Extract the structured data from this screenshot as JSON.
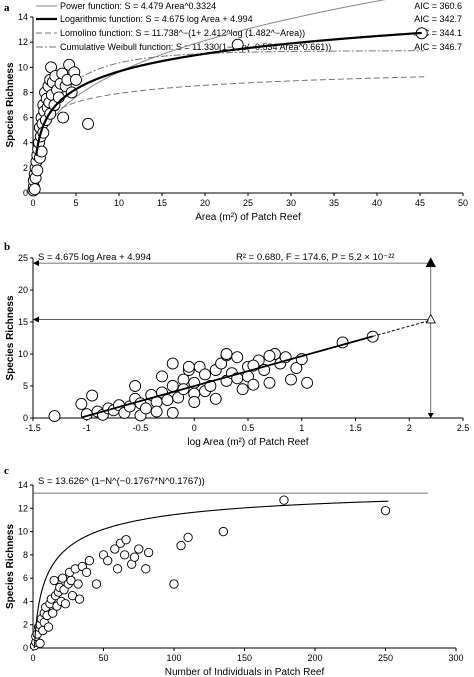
{
  "chart_data": [
    {
      "panel": "a",
      "type": "scatter",
      "xlabel": "Area (m²) of Patch Reef",
      "ylabel": "Species Richness",
      "xlim": [
        0,
        50
      ],
      "ylim": [
        0,
        14
      ],
      "xticks": [
        "0",
        "5",
        "10",
        "15",
        "20",
        "25",
        "30",
        "35",
        "40",
        "45",
        "50"
      ],
      "yticks": [
        "0",
        "2",
        "4",
        "6",
        "8",
        "10",
        "12",
        "14"
      ],
      "legend": [
        {
          "label": "Power function: S = 4.479 Area^0.3324",
          "aic": "AIC = 360.6",
          "color": "#888888",
          "width": 1,
          "dash": ""
        },
        {
          "label": "Logarithmic function: S = 4.675 log Area + 4.994",
          "aic": "AIC = 342.7",
          "color": "#000000",
          "width": 2.2,
          "dash": ""
        },
        {
          "label": "Lomolino function: S = 11.738^−(1+ 2.412^log (1.482^−Area))",
          "aic": "AIC = 344.1",
          "color": "#777777",
          "width": 1,
          "dash": "6,3"
        },
        {
          "label": "Cumulative Weibull function: S = 11.330(1−exp(−0.534 Area^0.661))",
          "aic": "AIC = 346.7",
          "color": "#777777",
          "width": 1,
          "dash": "7,2,2,2"
        }
      ],
      "points": [
        [
          0.05,
          0.2
        ],
        [
          0.1,
          0.5
        ],
        [
          0.1,
          1.0
        ],
        [
          0.2,
          0.3
        ],
        [
          0.2,
          1.5
        ],
        [
          0.3,
          2.0
        ],
        [
          0.3,
          1.2
        ],
        [
          0.4,
          2.5
        ],
        [
          0.5,
          3.0
        ],
        [
          0.5,
          1.8
        ],
        [
          0.6,
          3.5
        ],
        [
          0.7,
          4.0
        ],
        [
          0.8,
          2.8
        ],
        [
          0.8,
          5.2
        ],
        [
          0.9,
          4.5
        ],
        [
          1.0,
          6.0
        ],
        [
          1.0,
          3.3
        ],
        [
          1.1,
          5.5
        ],
        [
          1.2,
          7.0
        ],
        [
          1.2,
          4.8
        ],
        [
          1.3,
          6.5
        ],
        [
          1.4,
          8.0
        ],
        [
          1.5,
          5.8
        ],
        [
          1.6,
          7.5
        ],
        [
          1.7,
          6.8
        ],
        [
          1.8,
          8.5
        ],
        [
          1.9,
          7.2
        ],
        [
          2.0,
          6.3
        ],
        [
          2.0,
          9.0
        ],
        [
          2.1,
          10.0
        ],
        [
          2.2,
          7.8
        ],
        [
          2.3,
          8.8
        ],
        [
          2.5,
          7.0
        ],
        [
          2.6,
          9.3
        ],
        [
          2.8,
          8.2
        ],
        [
          3.0,
          7.6
        ],
        [
          3.2,
          8.7
        ],
        [
          3.4,
          9.5
        ],
        [
          3.5,
          6.0
        ],
        [
          3.8,
          8.5
        ],
        [
          4.0,
          9.0
        ],
        [
          4.2,
          10.2
        ],
        [
          4.5,
          8.0
        ],
        [
          4.8,
          9.6
        ],
        [
          5.0,
          9.0
        ],
        [
          6.4,
          5.5
        ],
        [
          23.8,
          11.8
        ],
        [
          45.2,
          12.7
        ]
      ],
      "curves": {
        "power": {
          "a": 4.479,
          "b": 0.3324
        },
        "logarithmic": {
          "a": 4.675,
          "b": 4.994
        },
        "lomolino": {
          "a": 11.738,
          "b": 2.412,
          "c": 1.482
        },
        "weibull": {
          "a": 11.33,
          "b": 0.534,
          "c": 0.661
        }
      }
    },
    {
      "panel": "b",
      "type": "scatter",
      "annotation": "S = 4.675 log Area + 4.994",
      "stats": "R² = 0.680, F = 174.6, P = 5.2 × 10⁻²²",
      "xlabel": "log Area (m²) of Patch Reef",
      "ylabel": "Species Richness",
      "xlim": [
        -1.5,
        2.5
      ],
      "ylim": [
        0,
        25
      ],
      "xticks": [
        "-1.5",
        "-1",
        "-0.5",
        "0",
        "0.5",
        "1",
        "1.5",
        "2",
        "2.5"
      ],
      "yticks": [
        "0",
        "5",
        "10",
        "15",
        "20",
        "25"
      ],
      "line": {
        "slope": 4.675,
        "intercept": 4.994,
        "x_start": -1.05,
        "x_solid_end": 1.66,
        "x_dash_end": 2.2
      },
      "ref_lines": [
        {
          "y": 24.2,
          "marker": "filled-triangle"
        },
        {
          "y": 15.4,
          "marker": "open-triangle"
        }
      ],
      "ref_x": 2.2,
      "points": [
        [
          -1.3,
          0.3
        ],
        [
          -1.05,
          2.2
        ],
        [
          -1.0,
          0.6
        ],
        [
          -0.95,
          3.5
        ],
        [
          -0.9,
          1.0
        ],
        [
          -0.85,
          0.5
        ],
        [
          -0.8,
          1.5
        ],
        [
          -0.75,
          1.2
        ],
        [
          -0.7,
          2.0
        ],
        [
          -0.65,
          0.8
        ],
        [
          -0.6,
          1.8
        ],
        [
          -0.55,
          3.0
        ],
        [
          -0.5,
          2.3
        ],
        [
          -0.5,
          0.4
        ],
        [
          -0.45,
          1.5
        ],
        [
          -0.4,
          3.6
        ],
        [
          -0.35,
          2.5
        ],
        [
          -0.35,
          1.0
        ],
        [
          -0.3,
          4.0
        ],
        [
          -0.3,
          6.5
        ],
        [
          -0.25,
          2.8
        ],
        [
          -0.2,
          5.0
        ],
        [
          -0.2,
          0.8
        ],
        [
          -0.15,
          3.2
        ],
        [
          -0.1,
          6.0
        ],
        [
          -0.1,
          4.5
        ],
        [
          -0.05,
          7.5
        ],
        [
          0.0,
          5.5
        ],
        [
          0.0,
          3.8
        ],
        [
          0.0,
          2.5
        ],
        [
          0.05,
          8.0
        ],
        [
          0.1,
          4.2
        ],
        [
          0.1,
          6.8
        ],
        [
          0.15,
          5.0
        ],
        [
          0.2,
          7.5
        ],
        [
          0.2,
          3.0
        ],
        [
          0.25,
          8.5
        ],
        [
          0.3,
          5.8
        ],
        [
          0.3,
          9.8
        ],
        [
          0.35,
          7.0
        ],
        [
          0.4,
          6.2
        ],
        [
          0.4,
          9.5
        ],
        [
          0.45,
          4.5
        ],
        [
          0.5,
          8.0
        ],
        [
          0.5,
          6.5
        ],
        [
          0.55,
          5.2
        ],
        [
          0.6,
          9.0
        ],
        [
          0.65,
          7.5
        ],
        [
          0.7,
          5.5
        ],
        [
          0.75,
          10.0
        ],
        [
          0.8,
          8.5
        ],
        [
          0.85,
          9.5
        ],
        [
          0.9,
          6.0
        ],
        [
          0.95,
          7.8
        ],
        [
          1.0,
          9.2
        ],
        [
          1.05,
          5.5
        ],
        [
          -0.55,
          5.0
        ],
        [
          -0.2,
          8.5
        ],
        [
          -0.05,
          8.0
        ],
        [
          0.3,
          10.0
        ],
        [
          0.55,
          8.2
        ],
        [
          0.7,
          9.7
        ],
        [
          1.38,
          11.8
        ],
        [
          1.66,
          12.7
        ]
      ]
    },
    {
      "panel": "c",
      "type": "scatter",
      "annotation": "S = 13.626^ (1−N^(−0.1767*N^0.1767))",
      "xlabel": "Number of Individuals in Patch Reef",
      "ylabel": "Species Richness",
      "xlim": [
        0,
        300
      ],
      "ylim": [
        0,
        14
      ],
      "xticks": [
        "0",
        "50",
        "100",
        "150",
        "200",
        "250",
        "300"
      ],
      "yticks": [
        "0",
        "2",
        "4",
        "6",
        "8",
        "10",
        "12",
        "14"
      ],
      "asymptote": 13.3,
      "curve": {
        "a": 13.626,
        "b": 0.1767
      },
      "points": [
        [
          1,
          0.2
        ],
        [
          2,
          0.5
        ],
        [
          2,
          1.0
        ],
        [
          3,
          1.2
        ],
        [
          4,
          1.8
        ],
        [
          5,
          0.4
        ],
        [
          5,
          2.0
        ],
        [
          6,
          2.5
        ],
        [
          7,
          1.5
        ],
        [
          8,
          3.0
        ],
        [
          8,
          2.2
        ],
        [
          9,
          3.5
        ],
        [
          10,
          2.8
        ],
        [
          11,
          1.8
        ],
        [
          12,
          3.8
        ],
        [
          13,
          4.2
        ],
        [
          14,
          3.0
        ],
        [
          15,
          5.8
        ],
        [
          16,
          4.5
        ],
        [
          17,
          3.6
        ],
        [
          18,
          4.8
        ],
        [
          19,
          5.2
        ],
        [
          20,
          4.0
        ],
        [
          21,
          6.0
        ],
        [
          22,
          5.0
        ],
        [
          23,
          3.8
        ],
        [
          25,
          5.5
        ],
        [
          26,
          6.5
        ],
        [
          27,
          5.8
        ],
        [
          28,
          4.5
        ],
        [
          30,
          6.8
        ],
        [
          32,
          5.5
        ],
        [
          33,
          4.2
        ],
        [
          35,
          7.0
        ],
        [
          38,
          6.5
        ],
        [
          40,
          7.5
        ],
        [
          45,
          5.5
        ],
        [
          50,
          8.0
        ],
        [
          53,
          7.5
        ],
        [
          58,
          8.5
        ],
        [
          60,
          6.8
        ],
        [
          62,
          9.0
        ],
        [
          65,
          8.0
        ],
        [
          66,
          9.3
        ],
        [
          70,
          7.2
        ],
        [
          72,
          7.8
        ],
        [
          75,
          8.5
        ],
        [
          80,
          6.8
        ],
        [
          82,
          8.2
        ],
        [
          100,
          5.5
        ],
        [
          105,
          8.8
        ],
        [
          110,
          9.5
        ],
        [
          135,
          10.0
        ],
        [
          178,
          12.7
        ],
        [
          250,
          11.8
        ]
      ]
    }
  ],
  "panels": {
    "a": {
      "label": "a"
    },
    "b": {
      "label": "b"
    },
    "c": {
      "label": "c"
    }
  }
}
